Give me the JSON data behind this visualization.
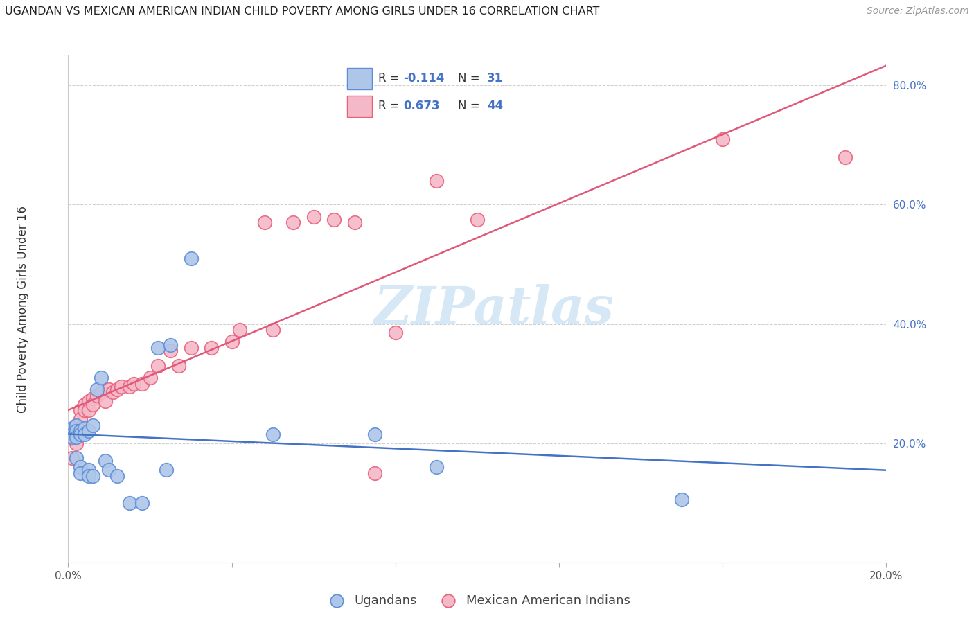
{
  "title": "UGANDAN VS MEXICAN AMERICAN INDIAN CHILD POVERTY AMONG GIRLS UNDER 16 CORRELATION CHART",
  "source": "Source: ZipAtlas.com",
  "ylabel": "Child Poverty Among Girls Under 16",
  "xlim": [
    0.0,
    0.2
  ],
  "ylim": [
    0.0,
    0.85
  ],
  "yticks": [
    0.2,
    0.4,
    0.6,
    0.8
  ],
  "ytick_labels": [
    "20.0%",
    "40.0%",
    "60.0%",
    "80.0%"
  ],
  "xticks": [
    0.0,
    0.04,
    0.08,
    0.12,
    0.16,
    0.2
  ],
  "xtick_labels": [
    "0.0%",
    "",
    "",
    "",
    "",
    "20.0%"
  ],
  "ugandan_color": "#aec6e8",
  "mexican_color": "#f5b8c8",
  "ugandan_edge_color": "#5b8dd9",
  "mexican_edge_color": "#e8607a",
  "ugandan_line_color": "#4472c4",
  "mexican_line_color": "#e05878",
  "watermark_color": "#d6e8f5",
  "legend_border_color": "#d0d0d0",
  "ugandan_scatter": [
    [
      0.001,
      0.225
    ],
    [
      0.001,
      0.215
    ],
    [
      0.001,
      0.21
    ],
    [
      0.002,
      0.23
    ],
    [
      0.002,
      0.22
    ],
    [
      0.002,
      0.21
    ],
    [
      0.002,
      0.175
    ],
    [
      0.003,
      0.22
    ],
    [
      0.003,
      0.215
    ],
    [
      0.003,
      0.16
    ],
    [
      0.003,
      0.15
    ],
    [
      0.004,
      0.225
    ],
    [
      0.004,
      0.215
    ],
    [
      0.005,
      0.22
    ],
    [
      0.005,
      0.155
    ],
    [
      0.005,
      0.145
    ],
    [
      0.006,
      0.23
    ],
    [
      0.006,
      0.145
    ],
    [
      0.007,
      0.29
    ],
    [
      0.008,
      0.31
    ],
    [
      0.009,
      0.17
    ],
    [
      0.01,
      0.155
    ],
    [
      0.012,
      0.145
    ],
    [
      0.015,
      0.1
    ],
    [
      0.018,
      0.1
    ],
    [
      0.022,
      0.36
    ],
    [
      0.024,
      0.155
    ],
    [
      0.025,
      0.365
    ],
    [
      0.03,
      0.51
    ],
    [
      0.05,
      0.215
    ],
    [
      0.075,
      0.215
    ],
    [
      0.09,
      0.16
    ],
    [
      0.15,
      0.105
    ]
  ],
  "mexican_scatter": [
    [
      0.001,
      0.21
    ],
    [
      0.001,
      0.175
    ],
    [
      0.002,
      0.23
    ],
    [
      0.002,
      0.22
    ],
    [
      0.002,
      0.2
    ],
    [
      0.003,
      0.255
    ],
    [
      0.003,
      0.24
    ],
    [
      0.003,
      0.225
    ],
    [
      0.004,
      0.265
    ],
    [
      0.004,
      0.255
    ],
    [
      0.005,
      0.27
    ],
    [
      0.005,
      0.255
    ],
    [
      0.006,
      0.275
    ],
    [
      0.006,
      0.265
    ],
    [
      0.007,
      0.28
    ],
    [
      0.008,
      0.285
    ],
    [
      0.009,
      0.27
    ],
    [
      0.01,
      0.29
    ],
    [
      0.011,
      0.285
    ],
    [
      0.012,
      0.29
    ],
    [
      0.013,
      0.295
    ],
    [
      0.015,
      0.295
    ],
    [
      0.016,
      0.3
    ],
    [
      0.018,
      0.3
    ],
    [
      0.02,
      0.31
    ],
    [
      0.022,
      0.33
    ],
    [
      0.025,
      0.355
    ],
    [
      0.027,
      0.33
    ],
    [
      0.03,
      0.36
    ],
    [
      0.035,
      0.36
    ],
    [
      0.04,
      0.37
    ],
    [
      0.042,
      0.39
    ],
    [
      0.048,
      0.57
    ],
    [
      0.05,
      0.39
    ],
    [
      0.055,
      0.57
    ],
    [
      0.06,
      0.58
    ],
    [
      0.065,
      0.575
    ],
    [
      0.07,
      0.57
    ],
    [
      0.075,
      0.15
    ],
    [
      0.08,
      0.385
    ],
    [
      0.09,
      0.64
    ],
    [
      0.1,
      0.575
    ],
    [
      0.16,
      0.71
    ],
    [
      0.19,
      0.68
    ]
  ]
}
